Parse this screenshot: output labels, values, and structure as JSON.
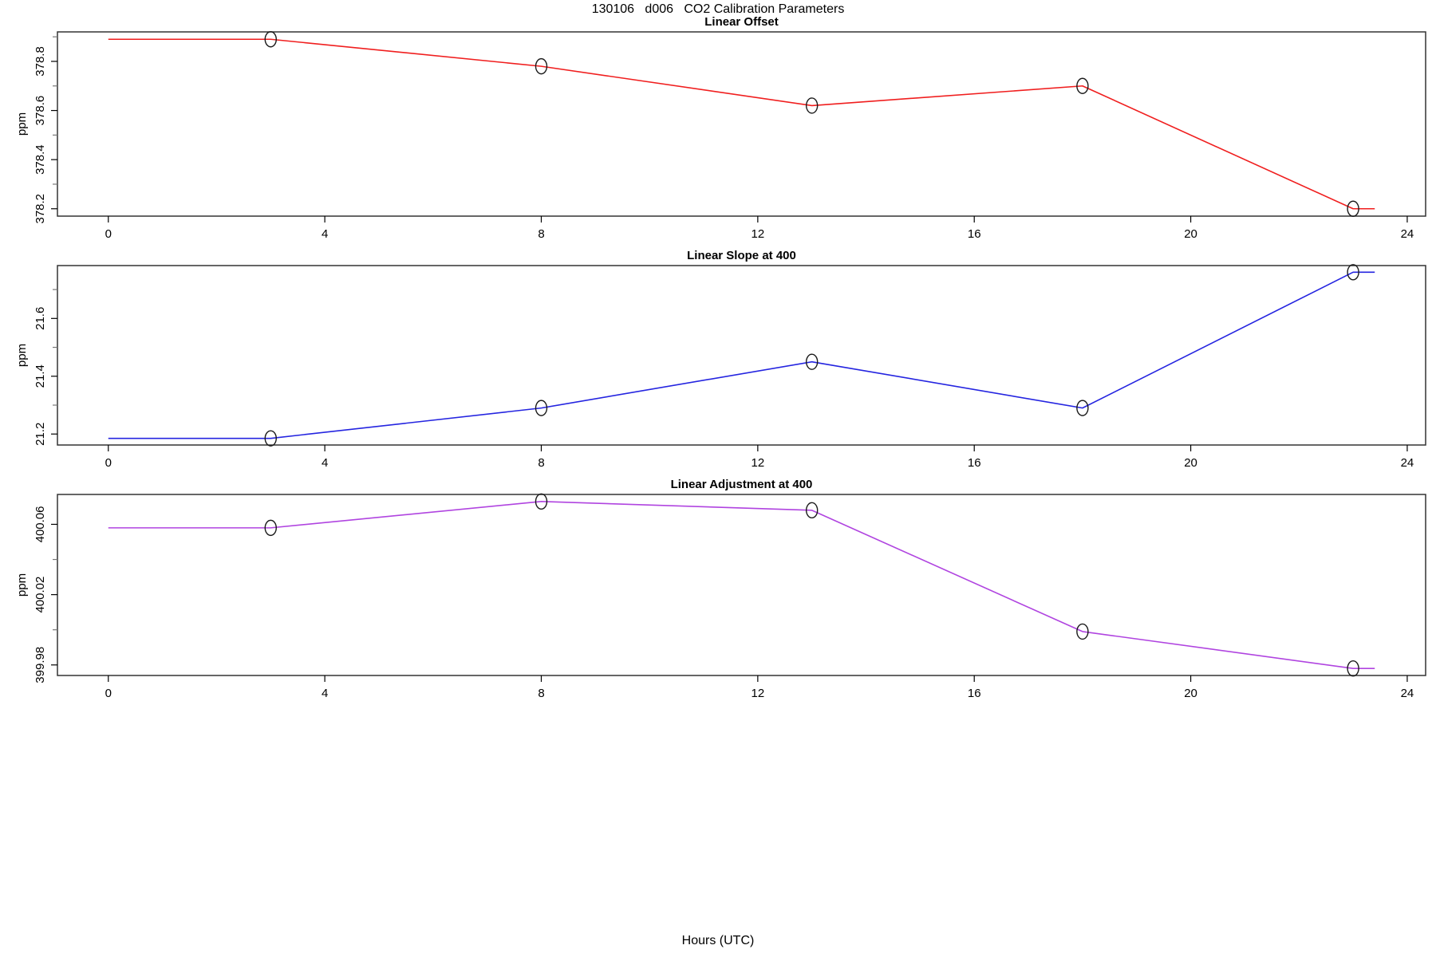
{
  "page": {
    "main_title": "130106   d006   CO2 Calibration Parameters",
    "xlabel": "Hours (UTC)",
    "background": "#ffffff"
  },
  "chart_data": [
    {
      "type": "line",
      "title": "Linear Offset",
      "ylabel": "ppm",
      "color": "#f01e1e",
      "marker": "open-circle",
      "marker_color": "#1a1a1a",
      "x": [
        3,
        8,
        13,
        18,
        23
      ],
      "y": [
        378.89,
        378.78,
        378.62,
        378.7,
        378.2
      ],
      "line_start_x": 0,
      "line_end_x": 23.4,
      "xlim": [
        -0.94,
        24.34
      ],
      "ylim": [
        378.17,
        378.92
      ],
      "xtick_values": [
        0,
        4,
        8,
        12,
        16,
        20,
        24
      ],
      "xtick_labels": [
        "0",
        "4",
        "8",
        "12",
        "16",
        "20",
        "24"
      ],
      "ytick_values": [
        378.2,
        378.4,
        378.6,
        378.8
      ],
      "ytick_labels": [
        "378.2",
        "378.4",
        "378.6",
        "378.8"
      ],
      "ytick_minor": [
        378.3,
        378.5,
        378.7,
        378.9
      ],
      "grid": false,
      "legend": "none"
    },
    {
      "type": "line",
      "title": "Linear Slope at 400",
      "ylabel": "ppm",
      "color": "#2424e0",
      "marker": "open-circle",
      "marker_color": "#1a1a1a",
      "x": [
        3,
        8,
        13,
        18,
        23
      ],
      "y": [
        21.185,
        21.29,
        21.45,
        21.29,
        21.76
      ],
      "line_start_x": 0,
      "line_end_x": 23.4,
      "xlim": [
        -0.94,
        24.34
      ],
      "ylim": [
        21.162,
        21.783
      ],
      "xtick_values": [
        0,
        4,
        8,
        12,
        16,
        20,
        24
      ],
      "xtick_labels": [
        "0",
        "4",
        "8",
        "12",
        "16",
        "20",
        "24"
      ],
      "ytick_values": [
        21.2,
        21.4,
        21.6
      ],
      "ytick_labels": [
        "21.2",
        "21.4",
        "21.6"
      ],
      "ytick_minor": [
        21.3,
        21.5,
        21.7
      ],
      "grid": false,
      "legend": "none"
    },
    {
      "type": "line",
      "title": "Linear Adjustment at 400",
      "ylabel": "ppm",
      "color": "#b044e0",
      "marker": "open-circle",
      "marker_color": "#1a1a1a",
      "x": [
        3,
        8,
        13,
        18,
        23
      ],
      "y": [
        400.058,
        400.073,
        400.068,
        399.999,
        399.978
      ],
      "line_start_x": 0,
      "line_end_x": 23.4,
      "xlim": [
        -0.94,
        24.34
      ],
      "ylim": [
        399.974,
        400.077
      ],
      "xtick_values": [
        0,
        4,
        8,
        12,
        16,
        20,
        24
      ],
      "xtick_labels": [
        "0",
        "4",
        "8",
        "12",
        "16",
        "20",
        "24"
      ],
      "ytick_values": [
        399.98,
        400.02,
        400.06
      ],
      "ytick_labels": [
        "399.98",
        "400.02",
        "400.06"
      ],
      "ytick_minor": [
        400.0,
        400.04
      ],
      "grid": false,
      "legend": "none"
    }
  ]
}
